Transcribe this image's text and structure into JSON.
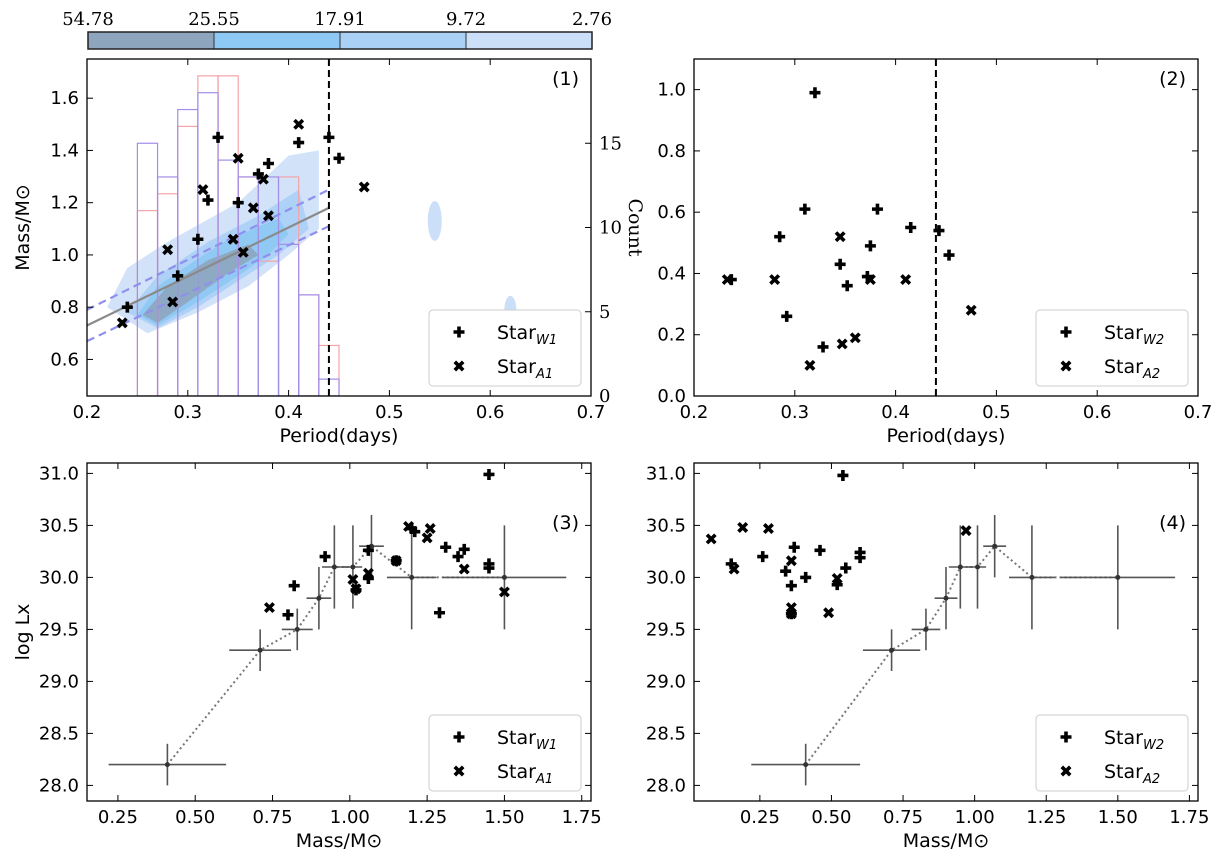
{
  "colorbar": {
    "labels": [
      "54.78",
      "25.55",
      "17.91",
      "9.72",
      "2.76"
    ],
    "colors": [
      "#8ea5be",
      "#8ec8f4",
      "#aad0f6",
      "#ccdff8"
    ]
  },
  "chart_data": [
    {
      "type": "scatter",
      "panel_label": "(1)",
      "xlabel": "Period(days)",
      "ylabel": "Mass/M⊙",
      "y2label": "Count",
      "xlim": [
        0.2,
        0.7
      ],
      "ylim": [
        0.46,
        1.75
      ],
      "y2lim": [
        0,
        20
      ],
      "xticks": [
        "0.2",
        "0.3",
        "0.4",
        "0.5",
        "0.6",
        "0.7"
      ],
      "yticks": [
        "0.6",
        "0.8",
        "1.0",
        "1.2",
        "1.4",
        "1.6"
      ],
      "y2ticks": [
        "0",
        "5",
        "10",
        "15"
      ],
      "vline_x": 0.44,
      "fit_line": [
        [
          0.2,
          0.73
        ],
        [
          0.44,
          1.18
        ]
      ],
      "fit_band_upper": [
        [
          0.2,
          0.79
        ],
        [
          0.44,
          1.25
        ]
      ],
      "fit_band_lower": [
        [
          0.2,
          0.67
        ],
        [
          0.44,
          1.11
        ]
      ],
      "histogram_blue": {
        "bin_edges": [
          0.25,
          0.27,
          0.29,
          0.31,
          0.33,
          0.35,
          0.37,
          0.39,
          0.41,
          0.43,
          0.45
        ],
        "counts": [
          15,
          13,
          17,
          18,
          14,
          13,
          13,
          9,
          6,
          1
        ]
      },
      "histogram_red": {
        "bin_edges": [
          0.25,
          0.27,
          0.29,
          0.31,
          0.33,
          0.35,
          0.37,
          0.39,
          0.41,
          0.43,
          0.45
        ],
        "counts": [
          11,
          12,
          16,
          19,
          19,
          13,
          8,
          13,
          6,
          3
        ]
      },
      "series": [
        {
          "name": "Star_W1",
          "marker": "plus",
          "points": [
            [
              0.24,
              0.8
            ],
            [
              0.29,
              0.92
            ],
            [
              0.31,
              1.06
            ],
            [
              0.32,
              1.21
            ],
            [
              0.33,
              1.45
            ],
            [
              0.35,
              1.2
            ],
            [
              0.37,
              1.31
            ],
            [
              0.38,
              1.35
            ],
            [
              0.41,
              1.43
            ],
            [
              0.44,
              1.45
            ],
            [
              0.45,
              1.37
            ]
          ]
        },
        {
          "name": "Star_A1",
          "marker": "x",
          "points": [
            [
              0.235,
              0.74
            ],
            [
              0.285,
              0.82
            ],
            [
              0.28,
              1.02
            ],
            [
              0.315,
              1.25
            ],
            [
              0.345,
              1.06
            ],
            [
              0.35,
              1.37
            ],
            [
              0.355,
              1.01
            ],
            [
              0.365,
              1.18
            ],
            [
              0.375,
              1.29
            ],
            [
              0.38,
              1.15
            ],
            [
              0.41,
              1.5
            ],
            [
              0.475,
              1.26
            ]
          ]
        }
      ],
      "legend": [
        {
          "label": "Star",
          "sub": "W1"
        },
        {
          "label": "Star",
          "sub": "A1"
        }
      ],
      "legend_position": "lower-right"
    },
    {
      "type": "scatter",
      "panel_label": "(2)",
      "xlabel": "Period(days)",
      "ylabel": "",
      "xlim": [
        0.2,
        0.7
      ],
      "ylim": [
        0.0,
        1.1
      ],
      "xticks": [
        "0.2",
        "0.3",
        "0.4",
        "0.5",
        "0.6",
        "0.7"
      ],
      "yticks": [
        "0.0",
        "0.2",
        "0.4",
        "0.6",
        "0.8",
        "1.0"
      ],
      "vline_x": 0.44,
      "series": [
        {
          "name": "Star_W2",
          "marker": "plus",
          "points": [
            [
              0.237,
              0.38
            ],
            [
              0.285,
              0.52
            ],
            [
              0.292,
              0.26
            ],
            [
              0.31,
              0.61
            ],
            [
              0.32,
              0.99
            ],
            [
              0.328,
              0.16
            ],
            [
              0.345,
              0.43
            ],
            [
              0.352,
              0.36
            ],
            [
              0.372,
              0.39
            ],
            [
              0.375,
              0.49
            ],
            [
              0.382,
              0.61
            ],
            [
              0.415,
              0.55
            ],
            [
              0.443,
              0.54
            ],
            [
              0.453,
              0.46
            ]
          ]
        },
        {
          "name": "Star_A2",
          "marker": "x",
          "points": [
            [
              0.233,
              0.38
            ],
            [
              0.28,
              0.38
            ],
            [
              0.315,
              0.1
            ],
            [
              0.345,
              0.52
            ],
            [
              0.347,
              0.17
            ],
            [
              0.36,
              0.19
            ],
            [
              0.375,
              0.38
            ],
            [
              0.41,
              0.38
            ],
            [
              0.475,
              0.28
            ]
          ]
        }
      ],
      "legend": [
        {
          "label": "Star",
          "sub": "W2"
        },
        {
          "label": "Star",
          "sub": "A2"
        }
      ],
      "legend_position": "lower-right"
    },
    {
      "type": "scatter",
      "panel_label": "(3)",
      "xlabel": "Mass/M⊙",
      "ylabel": "log Lx",
      "xlim": [
        0.15,
        1.78
      ],
      "ylim": [
        27.85,
        31.1
      ],
      "xticks": [
        "0.25",
        "0.50",
        "0.75",
        "1.00",
        "1.25",
        "1.50",
        "1.75"
      ],
      "yticks": [
        "28.0",
        "28.5",
        "29.0",
        "29.5",
        "30.0",
        "30.5",
        "31.0"
      ],
      "binned": [
        {
          "x": 0.41,
          "y": 28.2,
          "xerr": 0.19,
          "yerr": 0.2
        },
        {
          "x": 0.71,
          "y": 29.3,
          "xerr": 0.1,
          "yerr": 0.2
        },
        {
          "x": 0.83,
          "y": 29.5,
          "xerr": 0.05,
          "yerr": 0.2
        },
        {
          "x": 0.9,
          "y": 29.8,
          "xerr": 0.04,
          "yerr": 0.3
        },
        {
          "x": 0.95,
          "y": 30.1,
          "xerr": 0.04,
          "yerr": 0.4
        },
        {
          "x": 1.01,
          "y": 30.1,
          "xerr": 0.03,
          "yerr": 0.4
        },
        {
          "x": 1.07,
          "y": 30.3,
          "xerr": 0.04,
          "yerr": 0.3
        },
        {
          "x": 1.2,
          "y": 30.0,
          "xerr": 0.08,
          "yerr": 0.5
        },
        {
          "x": 1.5,
          "y": 30.0,
          "xerr": 0.2,
          "yerr": 0.5
        }
      ],
      "series": [
        {
          "name": "Star_W1",
          "marker": "plus",
          "points": [
            [
              0.8,
              29.64
            ],
            [
              0.82,
              29.92
            ],
            [
              0.92,
              30.2
            ],
            [
              1.02,
              29.88
            ],
            [
              1.06,
              30.26
            ],
            [
              1.06,
              29.99
            ],
            [
              1.15,
              30.16
            ],
            [
              1.2,
              30.47
            ],
            [
              1.21,
              30.44
            ],
            [
              1.29,
              29.66
            ],
            [
              1.31,
              30.29
            ],
            [
              1.35,
              30.2
            ],
            [
              1.37,
              30.27
            ],
            [
              1.45,
              30.09
            ],
            [
              1.45,
              30.13
            ],
            [
              1.45,
              30.99
            ]
          ]
        },
        {
          "name": "Star_A1",
          "marker": "x",
          "points": [
            [
              0.74,
              29.71
            ],
            [
              1.01,
              29.98
            ],
            [
              1.02,
              29.89
            ],
            [
              1.06,
              30.04
            ],
            [
              1.15,
              30.16
            ],
            [
              1.19,
              30.49
            ],
            [
              1.25,
              30.38
            ],
            [
              1.26,
              30.47
            ],
            [
              1.37,
              30.08
            ],
            [
              1.5,
              29.86
            ]
          ]
        }
      ],
      "legend": [
        {
          "label": "Star",
          "sub": "W1"
        },
        {
          "label": "Star",
          "sub": "A1"
        }
      ],
      "legend_position": "lower-right"
    },
    {
      "type": "scatter",
      "panel_label": "(4)",
      "xlabel": "Mass/M⊙",
      "ylabel": "",
      "xlim": [
        0.02,
        1.78
      ],
      "ylim": [
        27.85,
        31.1
      ],
      "xticks": [
        "0.25",
        "0.50",
        "0.75",
        "1.00",
        "1.25",
        "1.50",
        "1.75"
      ],
      "yticks": [
        "28.0",
        "28.5",
        "29.0",
        "29.5",
        "30.0",
        "30.5",
        "31.0"
      ],
      "binned": [
        {
          "x": 0.41,
          "y": 28.2,
          "xerr": 0.19,
          "yerr": 0.2
        },
        {
          "x": 0.71,
          "y": 29.3,
          "xerr": 0.1,
          "yerr": 0.2
        },
        {
          "x": 0.83,
          "y": 29.5,
          "xerr": 0.05,
          "yerr": 0.2
        },
        {
          "x": 0.9,
          "y": 29.8,
          "xerr": 0.04,
          "yerr": 0.3
        },
        {
          "x": 0.95,
          "y": 30.1,
          "xerr": 0.04,
          "yerr": 0.4
        },
        {
          "x": 1.01,
          "y": 30.1,
          "xerr": 0.03,
          "yerr": 0.4
        },
        {
          "x": 1.07,
          "y": 30.3,
          "xerr": 0.04,
          "yerr": 0.3
        },
        {
          "x": 1.2,
          "y": 30.0,
          "xerr": 0.08,
          "yerr": 0.5
        },
        {
          "x": 1.5,
          "y": 30.0,
          "xerr": 0.2,
          "yerr": 0.5
        }
      ],
      "series": [
        {
          "name": "Star_W2",
          "marker": "plus",
          "points": [
            [
              0.15,
              30.13
            ],
            [
              0.26,
              30.2
            ],
            [
              0.34,
              30.06
            ],
            [
              0.36,
              29.92
            ],
            [
              0.36,
              29.65
            ],
            [
              0.37,
              30.29
            ],
            [
              0.41,
              30.0
            ],
            [
              0.46,
              30.26
            ],
            [
              0.52,
              29.93
            ],
            [
              0.54,
              30.98
            ],
            [
              0.55,
              30.09
            ],
            [
              0.6,
              30.19
            ],
            [
              0.6,
              30.24
            ]
          ]
        },
        {
          "name": "Star_A2",
          "marker": "x",
          "points": [
            [
              0.08,
              30.37
            ],
            [
              0.16,
              30.08
            ],
            [
              0.19,
              30.48
            ],
            [
              0.28,
              30.47
            ],
            [
              0.36,
              30.16
            ],
            [
              0.36,
              29.71
            ],
            [
              0.36,
              29.65
            ],
            [
              0.49,
              29.66
            ],
            [
              0.52,
              29.99
            ],
            [
              0.97,
              30.45
            ]
          ]
        }
      ],
      "legend": [
        {
          "label": "Star",
          "sub": "W2"
        },
        {
          "label": "Star",
          "sub": "A2"
        }
      ],
      "legend_position": "lower-right"
    }
  ]
}
